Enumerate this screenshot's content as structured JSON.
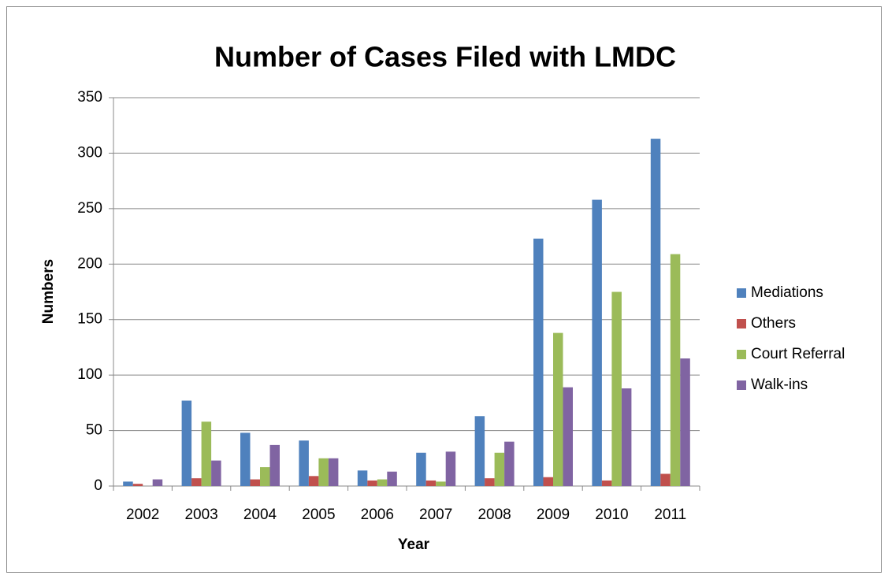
{
  "chart_data": {
    "type": "bar",
    "title": "Number of Cases Filed with LMDC",
    "x_label": "Year",
    "y_label": "Numbers",
    "categories": [
      "2002",
      "2003",
      "2004",
      "2005",
      "2006",
      "2007",
      "2008",
      "2009",
      "2010",
      "2011"
    ],
    "series": [
      {
        "name": "Mediations",
        "color": "#4f81bd",
        "values": [
          4,
          77,
          48,
          41,
          14,
          30,
          63,
          223,
          258,
          313
        ]
      },
      {
        "name": "Others",
        "color": "#c0504d",
        "values": [
          2,
          7,
          6,
          9,
          5,
          5,
          7,
          8,
          5,
          11
        ]
      },
      {
        "name": "Court Referral",
        "color": "#9bbb59",
        "values": [
          0,
          58,
          17,
          25,
          6,
          4,
          30,
          138,
          175,
          209
        ]
      },
      {
        "name": "Walk-ins",
        "color": "#8064a2",
        "values": [
          6,
          23,
          37,
          25,
          13,
          31,
          40,
          89,
          88,
          115
        ]
      }
    ],
    "ylim": [
      0,
      350
    ],
    "yticks": [
      0,
      50,
      100,
      150,
      200,
      250,
      300,
      350
    ],
    "grid": true,
    "legend": "right"
  }
}
